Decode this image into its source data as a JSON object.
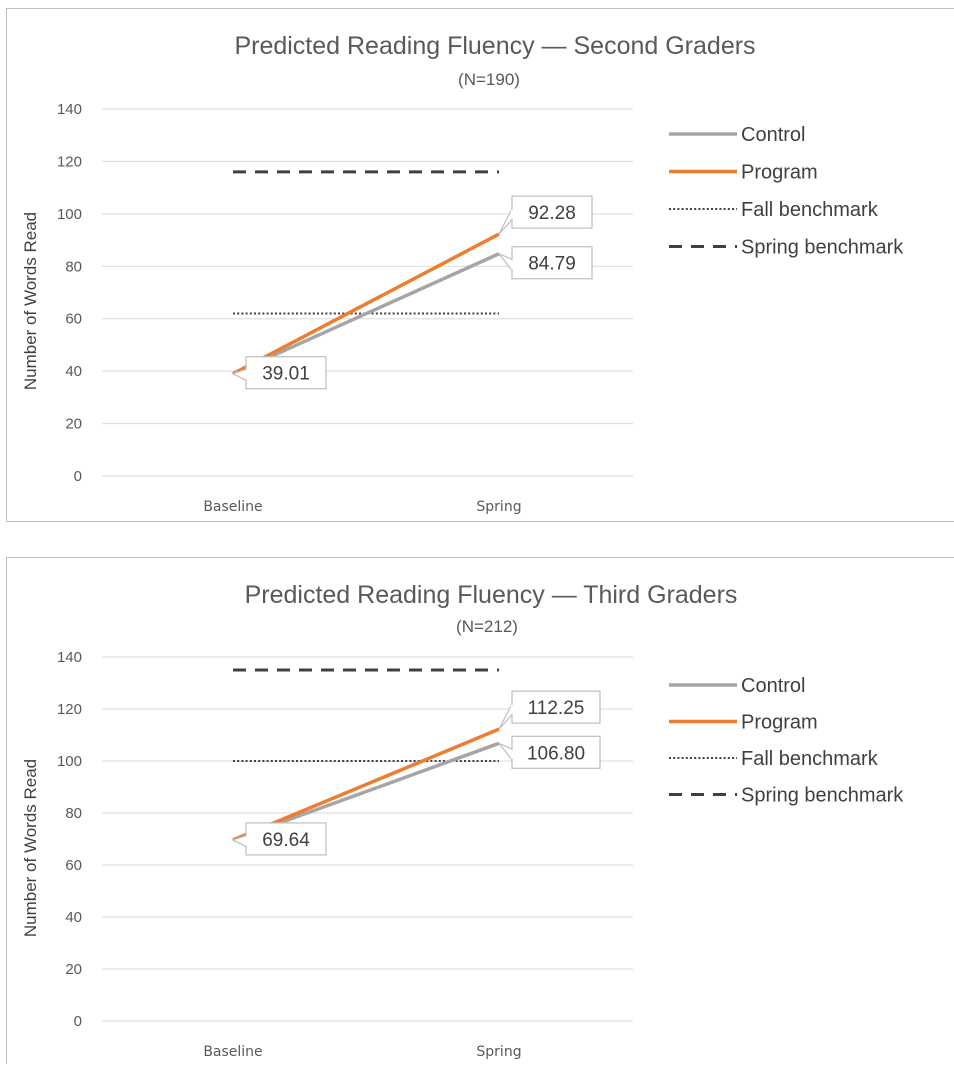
{
  "chart_data": [
    {
      "type": "line",
      "title": "Predicted Reading Fluency — Second Graders",
      "subtitle": "(N=190)",
      "ylabel": "Number of Words Read",
      "xlabel": "",
      "categories": [
        "Baseline",
        "Spring"
      ],
      "ylim": [
        0,
        140
      ],
      "yticks": [
        0,
        20,
        40,
        60,
        80,
        100,
        120,
        140
      ],
      "grid": true,
      "legend_position": "right",
      "series": [
        {
          "name": "Control",
          "values": [
            39.01,
            84.79
          ],
          "color": "#a5a5a5",
          "style": "solid"
        },
        {
          "name": "Program",
          "values": [
            39.01,
            92.28
          ],
          "color": "#ed7d31",
          "style": "solid"
        },
        {
          "name": "Fall benchmark",
          "values": [
            62,
            62
          ],
          "color": "#404040",
          "style": "dotted"
        },
        {
          "name": "Spring benchmark",
          "values": [
            116,
            116
          ],
          "color": "#404040",
          "style": "dashed"
        }
      ],
      "data_labels": [
        {
          "series": "Program",
          "point": 1,
          "text": "92.28"
        },
        {
          "series": "Control",
          "point": 1,
          "text": "84.79"
        },
        {
          "series": "Control",
          "point": 0,
          "text": "39.01"
        }
      ]
    },
    {
      "type": "line",
      "title": "Predicted Reading Fluency — Third Graders",
      "subtitle": "(N=212)",
      "ylabel": "Number of Words Read",
      "xlabel": "",
      "categories": [
        "Baseline",
        "Spring"
      ],
      "ylim": [
        0,
        140
      ],
      "yticks": [
        0,
        20,
        40,
        60,
        80,
        100,
        120,
        140
      ],
      "grid": true,
      "legend_position": "right",
      "series": [
        {
          "name": "Control",
          "values": [
            69.64,
            106.8
          ],
          "color": "#a5a5a5",
          "style": "solid"
        },
        {
          "name": "Program",
          "values": [
            69.64,
            112.25
          ],
          "color": "#ed7d31",
          "style": "solid"
        },
        {
          "name": "Fall benchmark",
          "values": [
            100,
            100
          ],
          "color": "#404040",
          "style": "dotted"
        },
        {
          "name": "Spring benchmark",
          "values": [
            135,
            135
          ],
          "color": "#404040",
          "style": "dashed"
        }
      ],
      "data_labels": [
        {
          "series": "Program",
          "point": 1,
          "text": "112.25"
        },
        {
          "series": "Control",
          "point": 1,
          "text": "106.80"
        },
        {
          "series": "Control",
          "point": 0,
          "text": "69.64"
        }
      ]
    }
  ]
}
